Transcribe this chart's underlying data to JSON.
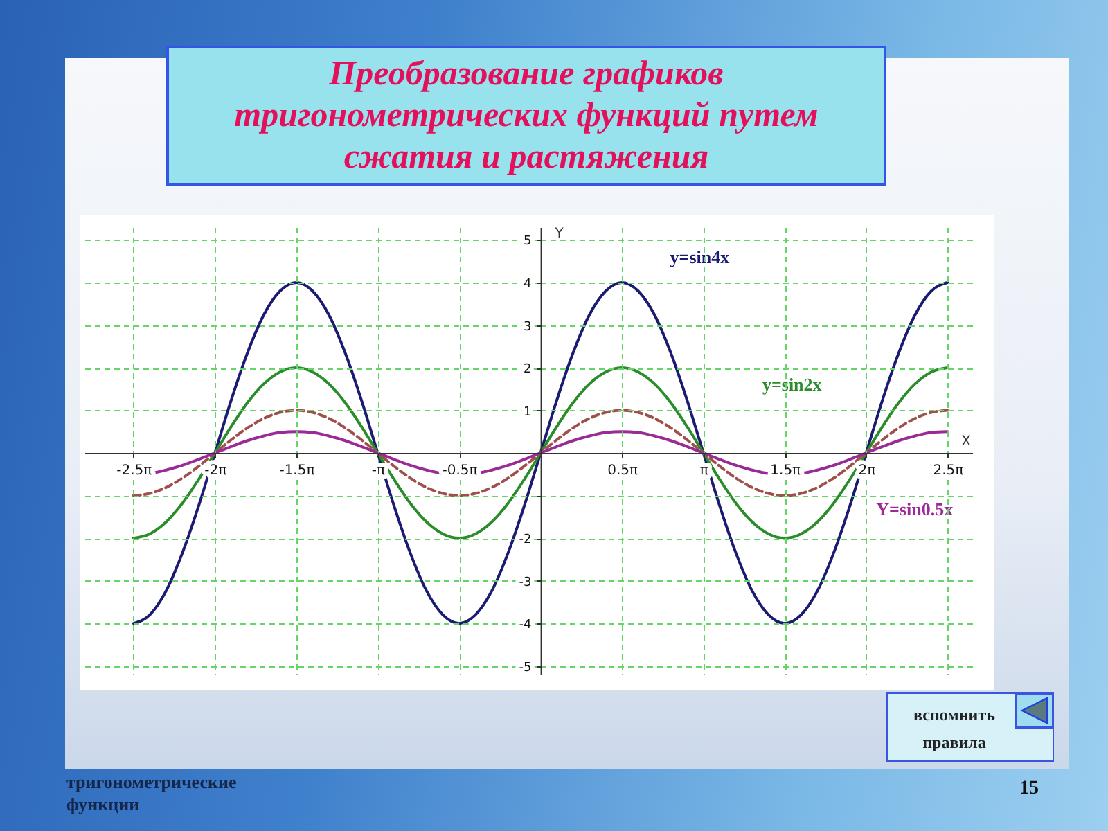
{
  "chart_data": {
    "type": "line",
    "title": "Преобразование графиков тригонометрических функций путем сжатия и растяжения",
    "xlabel": "X",
    "ylabel": "Y",
    "x": [
      -7.854,
      -7.54,
      -7.226,
      -6.912,
      -6.597,
      -6.283,
      -5.969,
      -5.655,
      -5.341,
      -5.027,
      -4.712,
      -4.398,
      -4.084,
      -3.77,
      -3.456,
      -3.142,
      -2.827,
      -2.513,
      -2.199,
      -1.885,
      -1.571,
      -1.257,
      -0.942,
      -0.628,
      -0.314,
      0,
      0.314,
      0.628,
      0.942,
      1.257,
      1.571,
      1.885,
      2.199,
      2.513,
      2.827,
      3.142,
      3.456,
      3.77,
      4.084,
      4.398,
      4.712,
      5.027,
      5.341,
      5.655,
      5.969,
      6.283,
      6.597,
      6.912,
      7.226,
      7.54,
      7.854
    ],
    "series": [
      {
        "name": "y=sin4x",
        "color": "#1b1b72",
        "values": [
          -4,
          -3.8,
          -3.24,
          -2.35,
          -1.24,
          0,
          1.24,
          2.35,
          3.24,
          3.8,
          4,
          3.8,
          3.24,
          2.35,
          1.24,
          0,
          -1.24,
          -2.35,
          -3.24,
          -3.8,
          -4,
          -3.8,
          -3.24,
          -2.35,
          -1.24,
          0,
          1.24,
          2.35,
          3.24,
          3.8,
          4,
          3.8,
          3.24,
          2.35,
          1.24,
          0,
          -1.24,
          -2.35,
          -3.24,
          -3.8,
          -4,
          -3.8,
          -3.24,
          -2.35,
          -1.24,
          0,
          1.24,
          2.35,
          3.24,
          3.8,
          4
        ]
      },
      {
        "name": "y=sin2x",
        "color": "#2a8c2a",
        "values": [
          -2,
          -1.9,
          -1.62,
          -1.18,
          -0.62,
          0,
          0.62,
          1.18,
          1.62,
          1.9,
          2,
          1.9,
          1.62,
          1.18,
          0.62,
          0,
          -0.62,
          -1.18,
          -1.62,
          -1.9,
          -2,
          -1.9,
          -1.62,
          -1.18,
          -0.62,
          0,
          0.62,
          1.18,
          1.62,
          1.9,
          2,
          1.9,
          1.62,
          1.18,
          0.62,
          0,
          -0.62,
          -1.18,
          -1.62,
          -1.9,
          -2,
          -1.9,
          -1.62,
          -1.18,
          -0.62,
          0,
          0.62,
          1.18,
          1.62,
          1.9,
          2
        ]
      },
      {
        "color": "#a0504a",
        "line_style": "dashed",
        "values": [
          -1,
          -0.95,
          -0.81,
          -0.59,
          -0.31,
          0,
          0.31,
          0.59,
          0.81,
          0.95,
          1,
          0.95,
          0.81,
          0.59,
          0.31,
          0,
          -0.31,
          -0.59,
          -0.81,
          -0.95,
          -1,
          -0.95,
          -0.81,
          -0.59,
          -0.31,
          0,
          0.31,
          0.59,
          0.81,
          0.95,
          1,
          0.95,
          0.81,
          0.59,
          0.31,
          0,
          -0.31,
          -0.59,
          -0.81,
          -0.95,
          -1,
          -0.95,
          -0.81,
          -0.59,
          -0.31,
          0,
          0.31,
          0.59,
          0.81,
          0.95,
          1
        ]
      },
      {
        "name": "Y=sin0.5x",
        "color": "#9a2a96",
        "values": [
          -0.5,
          -0.48,
          -0.4,
          -0.29,
          -0.15,
          0,
          0.15,
          0.29,
          0.4,
          0.48,
          0.5,
          0.48,
          0.4,
          0.29,
          0.15,
          0,
          -0.15,
          -0.29,
          -0.4,
          -0.48,
          -0.5,
          -0.48,
          -0.4,
          -0.29,
          -0.15,
          0,
          0.15,
          0.29,
          0.4,
          0.48,
          0.5,
          0.48,
          0.4,
          0.29,
          0.15,
          0,
          -0.15,
          -0.29,
          -0.4,
          -0.48,
          -0.5,
          -0.48,
          -0.4,
          -0.29,
          -0.15,
          0,
          0.15,
          0.29,
          0.4,
          0.48,
          0.5
        ]
      }
    ],
    "xlim": [
      -8.8,
      8.33
    ],
    "ylim": [
      -5.2,
      5.3
    ],
    "xticks": [
      {
        "value": -7.854,
        "label": "-2.5π"
      },
      {
        "value": -6.283,
        "label": "-2π"
      },
      {
        "value": -4.712,
        "label": "-1.5π"
      },
      {
        "value": -3.142,
        "label": "-π"
      },
      {
        "value": -1.571,
        "label": "-0.5π"
      },
      {
        "value": 1.571,
        "label": "0.5π"
      },
      {
        "value": 3.142,
        "label": "π"
      },
      {
        "value": 4.712,
        "label": "1.5π"
      },
      {
        "value": 6.283,
        "label": "2π"
      },
      {
        "value": 7.854,
        "label": "2.5π"
      }
    ],
    "yticks": [
      -5,
      -4,
      -3,
      -2,
      {
        "value": -1,
        "label": null
      },
      1,
      2,
      3,
      4,
      5
    ],
    "grid": true,
    "annotations": [
      "вспомнить правила",
      "тригонометрические функции",
      "15"
    ]
  }
}
